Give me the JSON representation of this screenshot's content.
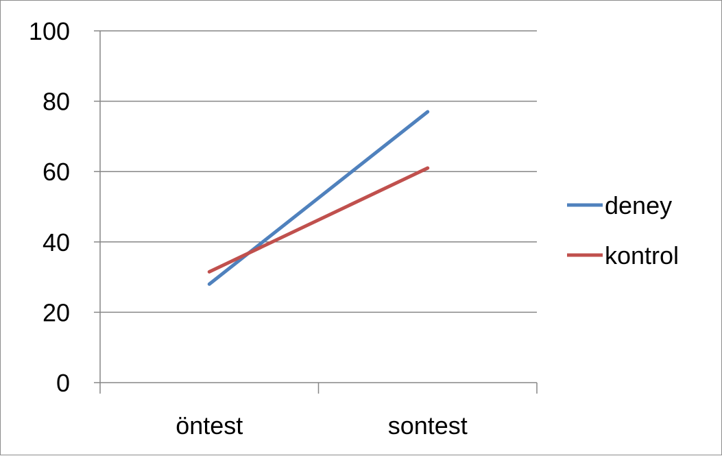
{
  "chart_data": {
    "type": "line",
    "categories": [
      "öntest",
      "sontest"
    ],
    "series": [
      {
        "name": "deney",
        "values": [
          28,
          77
        ],
        "color": "#4f81bd"
      },
      {
        "name": "kontrol",
        "values": [
          31.5,
          61
        ],
        "color": "#c0504d"
      }
    ],
    "ylim": [
      0,
      100
    ],
    "yticks": [
      "0",
      "20",
      "40",
      "60",
      "80",
      "100"
    ],
    "grid": true,
    "legend_position": "right",
    "title": "",
    "xlabel": "",
    "ylabel": ""
  }
}
